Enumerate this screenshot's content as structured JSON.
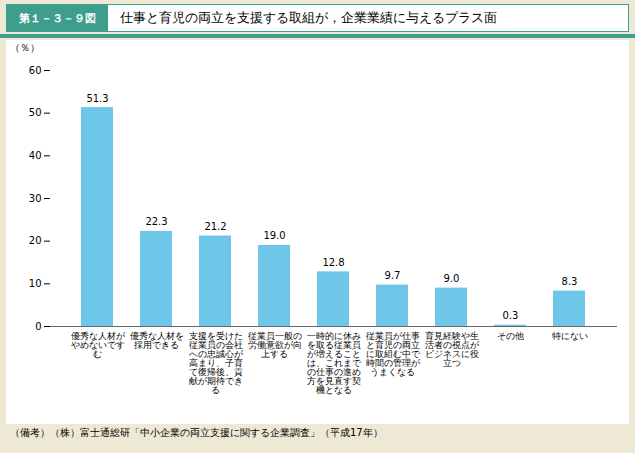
{
  "chart_data": {
    "type": "bar",
    "title": "第１－３－９図",
    "subtitle": "仕事と育児の両立を支援する取組が，企業業績に与えるプラス面",
    "caption": "（備考）（株）富士通総研「中小企業の両立支援に関する企業調査」（平成17年）",
    "ylabel": "（％）",
    "categories": [
      "優秀な人材がやめないですむ",
      "優秀な人材を採用できる",
      "支援を受けた従業員の会社への忠誠心が高まり、子育て復帰後、貢献が期待できる",
      "従業員一般の労働意欲が向上する",
      "一時的に休みを取る従業員が増えることは、これまでの仕事の進め方を見直す契機となる",
      "従業員が仕事と育児の両立に取組む中で時間の管理がうまくなる",
      "育見経験や生活者の視点がビジネスに役立つ",
      "その他",
      "特にない"
    ],
    "values": [
      51.3,
      22.3,
      21.2,
      19.0,
      12.8,
      9.7,
      9.0,
      0.3,
      8.3
    ],
    "value_labels": [
      "51.3",
      "22.3",
      "21.2",
      "19.0",
      "12.8",
      "9.7",
      "9.0",
      "0.3",
      "8.3"
    ],
    "color": "#6ec6e8",
    "ylim": [
      0,
      60
    ],
    "yticks": [
      0,
      10,
      20,
      30,
      40,
      50,
      60
    ],
    "grid": false,
    "data_labels": true
  }
}
